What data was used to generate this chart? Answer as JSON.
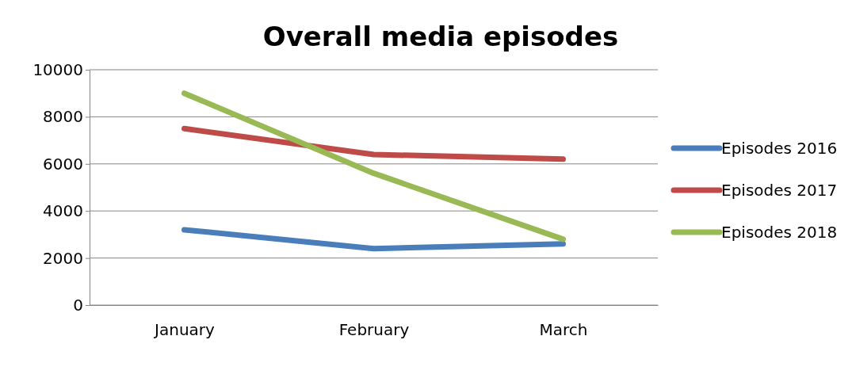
{
  "chart_data": {
    "type": "line",
    "title": "Overall media episodes",
    "categories": [
      "January",
      "February",
      "March"
    ],
    "series": [
      {
        "name": "Episodes 2016",
        "color": "#4a7ebb",
        "values": [
          3200,
          2400,
          2600
        ]
      },
      {
        "name": "Episodes 2017",
        "color": "#be4b48",
        "values": [
          7500,
          6400,
          6200
        ]
      },
      {
        "name": "Episodes 2018",
        "color": "#98b954",
        "values": [
          9000,
          5600,
          2800
        ]
      }
    ],
    "ylim": [
      0,
      10000
    ],
    "yticks": [
      0,
      2000,
      4000,
      6000,
      8000,
      10000
    ],
    "grid": "y",
    "legend": "right",
    "marker": "none",
    "line_style": "solid"
  }
}
